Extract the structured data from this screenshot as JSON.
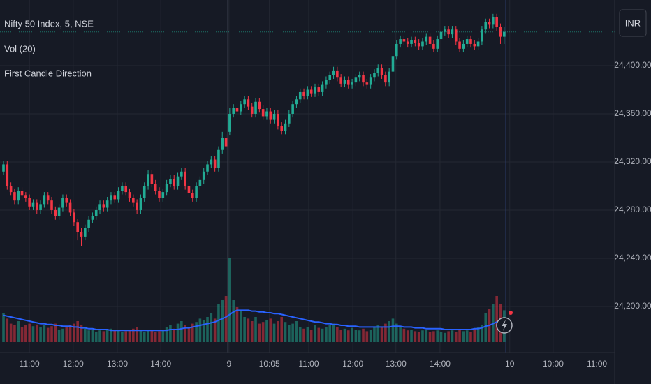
{
  "chart_data": {
    "type": "candlestick",
    "title": "Nifty 50 Index, 5, NSE",
    "indicators": [
      "Vol (20)",
      "First Candle Direction"
    ],
    "currency": "INR",
    "up_color": "#22ab94",
    "down_color": "#f23645",
    "volume_ma_color": "#2962ff",
    "grid": true,
    "ylim": [
      24161.7,
      24454.5
    ],
    "yticks": [
      {
        "value": 24200,
        "label": "24,200.00"
      },
      {
        "value": 24240,
        "label": "24,240.00"
      },
      {
        "value": 24280,
        "label": "24,280.00"
      },
      {
        "value": 24320,
        "label": "24,320.00"
      },
      {
        "value": 24360,
        "label": "24,360.00"
      },
      {
        "value": 24400,
        "label": "24,400.00"
      }
    ],
    "xlim": [
      -0.94,
      164.8
    ],
    "xticks": [
      {
        "value": 7,
        "label": "11:00"
      },
      {
        "value": 18.8,
        "label": "12:00"
      },
      {
        "value": 30.7,
        "label": "13:00"
      },
      {
        "value": 42.4,
        "label": "14:00"
      },
      {
        "value": 60.8,
        "label": "9"
      },
      {
        "value": 71.7,
        "label": "10:05"
      },
      {
        "value": 82.3,
        "label": "11:00"
      },
      {
        "value": 94.2,
        "label": "12:00"
      },
      {
        "value": 105.8,
        "label": "13:00"
      },
      {
        "value": 117.7,
        "label": "14:00"
      },
      {
        "value": 136.5,
        "label": "10"
      },
      {
        "value": 148.2,
        "label": "10:00"
      },
      {
        "value": 160,
        "label": "11:00"
      }
    ],
    "open": [
      24312,
      24318,
      24300,
      24295,
      24288,
      24296,
      24292,
      24290,
      24283,
      24286,
      24280,
      24285,
      24292,
      24288,
      24280,
      24275,
      24282,
      24290,
      24286,
      24278,
      24270,
      24262,
      24258,
      24265,
      24272,
      24275,
      24280,
      24285,
      24282,
      24288,
      24292,
      24289,
      24296,
      24300,
      24295,
      24290,
      24286,
      24280,
      24290,
      24300,
      24310,
      24302,
      24296,
      24290,
      24295,
      24302,
      24306,
      24300,
      24308,
      24312,
      24300,
      24294,
      24290,
      24300,
      24305,
      24312,
      24318,
      24322,
      24315,
      24330,
      24340,
      24345,
      24360,
      24365,
      24362,
      24368,
      24372,
      24366,
      24360,
      24370,
      24364,
      24358,
      24362,
      24355,
      24360,
      24350,
      24346,
      24352,
      24360,
      24368,
      24372,
      24378,
      24375,
      24380,
      24377,
      24382,
      24378,
      24384,
      24388,
      24392,
      24396,
      24390,
      24385,
      24388,
      24384,
      24386,
      24390,
      24392,
      24386,
      24384,
      24390,
      24394,
      24398,
      24392,
      24386,
      24395,
      24408,
      24418,
      24422,
      24420,
      24418,
      24421,
      24419,
      24416,
      24420,
      24424,
      24418,
      24414,
      24422,
      24428,
      24430,
      24426,
      24430,
      24420,
      24414,
      24418,
      24422,
      24418,
      24416,
      24420,
      24430,
      24436,
      24434,
      24440,
      24432,
      24424
    ],
    "high": [
      24321,
      24321,
      24303,
      24298,
      24299,
      24299,
      24295,
      24293,
      24289,
      24289,
      24288,
      24295,
      24295,
      24291,
      24283,
      24285,
      24293,
      24293,
      24289,
      24281,
      24273,
      24265,
      24268,
      24275,
      24278,
      24283,
      24288,
      24288,
      24291,
      24295,
      24295,
      24299,
      24303,
      24303,
      24298,
      24293,
      24289,
      24293,
      24303,
      24313,
      24313,
      24305,
      24299,
      24298,
      24305,
      24309,
      24309,
      24311,
      24315,
      24315,
      24303,
      24297,
      24303,
      24308,
      24315,
      24321,
      24325,
      24325,
      24333,
      24345,
      24343,
      24365,
      24368,
      24368,
      24371,
      24375,
      24375,
      24369,
      24373,
      24373,
      24367,
      24365,
      24365,
      24363,
      24363,
      24353,
      24355,
      24363,
      24371,
      24375,
      24381,
      24381,
      24383,
      24383,
      24385,
      24385,
      24387,
      24391,
      24395,
      24399,
      24399,
      24393,
      24391,
      24391,
      24389,
      24393,
      24395,
      24395,
      24389,
      24393,
      24397,
      24401,
      24401,
      24395,
      24398,
      24411,
      24421,
      24425,
      24425,
      24423,
      24424,
      24424,
      24422,
      24423,
      24427,
      24427,
      24421,
      24425,
      24431,
      24433,
      24433,
      24433,
      24433,
      24423,
      24421,
      24425,
      24425,
      24421,
      24423,
      24433,
      24439,
      24439,
      24443,
      24443,
      24435,
      24432
    ],
    "low": [
      24309,
      24297,
      24292,
      24285,
      24285,
      24289,
      24287,
      24280,
      24280,
      24277,
      24277,
      24282,
      24285,
      24277,
      24272,
      24272,
      24279,
      24283,
      24275,
      24267,
      24255,
      24250,
      24255,
      24262,
      24269,
      24272,
      24277,
      24279,
      24279,
      24285,
      24286,
      24286,
      24293,
      24292,
      24287,
      24283,
      24277,
      24277,
      24287,
      24297,
      24299,
      24293,
      24287,
      24287,
      24292,
      24299,
      24297,
      24297,
      24305,
      24297,
      24291,
      24287,
      24287,
      24297,
      24302,
      24309,
      24315,
      24312,
      24312,
      24327,
      24330,
      24342,
      24357,
      24359,
      24359,
      24365,
      24363,
      24357,
      24357,
      24361,
      24355,
      24355,
      24352,
      24352,
      24347,
      24343,
      24343,
      24349,
      24357,
      24365,
      24369,
      24372,
      24372,
      24374,
      24374,
      24375,
      24375,
      24381,
      24385,
      24389,
      24387,
      24382,
      24382,
      24381,
      24381,
      24383,
      24387,
      24383,
      24381,
      24381,
      24387,
      24391,
      24389,
      24383,
      24383,
      24392,
      24405,
      24415,
      24417,
      24415,
      24415,
      24416,
      24413,
      24413,
      24417,
      24415,
      24411,
      24411,
      24419,
      24425,
      24423,
      24423,
      24417,
      24411,
      24411,
      24415,
      24415,
      24413,
      24413,
      24417,
      24427,
      24431,
      24431,
      24429,
      24418,
      24418
    ],
    "close": [
      24318,
      24300,
      24295,
      24288,
      24296,
      24292,
      24290,
      24283,
      24286,
      24280,
      24285,
      24292,
      24288,
      24280,
      24275,
      24282,
      24290,
      24286,
      24278,
      24270,
      24262,
      24258,
      24265,
      24272,
      24275,
      24280,
      24285,
      24282,
      24288,
      24292,
      24289,
      24296,
      24300,
      24295,
      24290,
      24286,
      24280,
      24290,
      24300,
      24310,
      24302,
      24296,
      24290,
      24295,
      24302,
      24306,
      24300,
      24308,
      24312,
      24300,
      24294,
      24290,
      24300,
      24305,
      24312,
      24318,
      24322,
      24315,
      24330,
      24340,
      24333,
      24360,
      24365,
      24362,
      24368,
      24372,
      24366,
      24360,
      24370,
      24364,
      24358,
      24362,
      24355,
      24360,
      24350,
      24346,
      24352,
      24360,
      24368,
      24372,
      24378,
      24375,
      24380,
      24377,
      24382,
      24378,
      24384,
      24388,
      24392,
      24396,
      24390,
      24385,
      24388,
      24384,
      24386,
      24390,
      24392,
      24386,
      24384,
      24390,
      24394,
      24398,
      24392,
      24386,
      24395,
      24408,
      24418,
      24422,
      24420,
      24418,
      24421,
      24419,
      24416,
      24420,
      24424,
      24418,
      24414,
      24422,
      24428,
      24430,
      24426,
      24430,
      24420,
      24414,
      24418,
      24422,
      24418,
      24416,
      24420,
      24430,
      24436,
      24434,
      24440,
      24432,
      24424,
      24428
    ],
    "volume_max": 100,
    "volume": [
      35,
      28,
      22,
      20,
      25,
      18,
      20,
      22,
      19,
      21,
      18,
      20,
      17,
      19,
      22,
      15,
      16,
      18,
      20,
      22,
      25,
      20,
      16,
      14,
      15,
      12,
      14,
      13,
      15,
      16,
      14,
      15,
      12,
      13,
      14,
      16,
      18,
      14,
      12,
      15,
      14,
      12,
      13,
      15,
      18,
      20,
      16,
      22,
      25,
      20,
      18,
      22,
      24,
      28,
      26,
      30,
      35,
      28,
      45,
      50,
      55,
      100,
      50,
      42,
      38,
      30,
      28,
      25,
      30,
      22,
      24,
      26,
      28,
      22,
      25,
      30,
      24,
      20,
      22,
      25,
      18,
      16,
      18,
      15,
      20,
      17,
      16,
      18,
      20,
      22,
      18,
      15,
      16,
      14,
      17,
      15,
      14,
      16,
      13,
      15,
      18,
      20,
      18,
      22,
      25,
      28,
      22,
      18,
      16,
      14,
      15,
      13,
      12,
      14,
      15,
      12,
      13,
      14,
      12,
      11,
      13,
      14,
      12,
      15,
      13,
      14,
      12,
      16,
      18,
      20,
      35,
      40,
      45,
      55,
      45,
      38
    ],
    "volume_ma": [
      32,
      31,
      30,
      29,
      28,
      27,
      26,
      25,
      24,
      23,
      22,
      22,
      21,
      21,
      20,
      20,
      19,
      19,
      19,
      18,
      18,
      17,
      17,
      16,
      16,
      15,
      15,
      15,
      15,
      14,
      14,
      14,
      14,
      14,
      14,
      14,
      14,
      14,
      14,
      14,
      14,
      14,
      14,
      14,
      14,
      15,
      15,
      15,
      16,
      17,
      17,
      18,
      19,
      20,
      21,
      22,
      23,
      24,
      26,
      28,
      30,
      33,
      36,
      38,
      38,
      38,
      38,
      37,
      37,
      36,
      36,
      35,
      35,
      34,
      34,
      33,
      32,
      31,
      30,
      29,
      28,
      27,
      26,
      25,
      24,
      24,
      23,
      22,
      22,
      21,
      21,
      20,
      20,
      19,
      19,
      19,
      18,
      18,
      18,
      18,
      18,
      18,
      18,
      18,
      18,
      19,
      19,
      19,
      18,
      18,
      18,
      17,
      17,
      17,
      16,
      16,
      16,
      16,
      16,
      15,
      15,
      15,
      15,
      15,
      15,
      15,
      15,
      16,
      16,
      17,
      19,
      20,
      22,
      24,
      26,
      27
    ]
  }
}
